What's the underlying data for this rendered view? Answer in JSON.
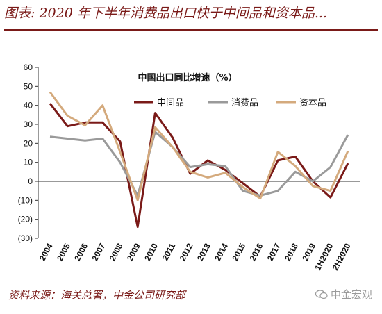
{
  "header": {
    "title": "图表: 2020 年下半年消费品出口快于中间品和资本品..."
  },
  "footer": {
    "source": "资料来源：海关总署，中金公司研究部",
    "watermark": "中金宏观"
  },
  "chart_data": {
    "type": "line",
    "title": "中国出口同比增速（%）",
    "categories": [
      "2004",
      "2005",
      "2006",
      "2007",
      "2008",
      "2009",
      "2010",
      "2011",
      "2012",
      "2013",
      "2014",
      "2015",
      "2016",
      "2017",
      "2018",
      "2019",
      "1H2020",
      "2H2020"
    ],
    "y_tick_labels": [
      "60",
      "50",
      "40",
      "30",
      "20",
      "10",
      "0",
      "(10)",
      "(20)",
      "(30)"
    ],
    "ylim": [
      -30,
      60
    ],
    "y_tick_step": 10,
    "grid": false,
    "legend": "top-right",
    "series": [
      {
        "name": "中间品",
        "color": "#7a1a18",
        "values": [
          41,
          29,
          31,
          31,
          21,
          -24,
          36,
          23,
          4,
          11,
          6,
          -1,
          -8,
          11,
          13,
          0,
          -8.5,
          9.5
        ]
      },
      {
        "name": "消费品",
        "color": "#9a9a9a",
        "values": [
          23.5,
          22.5,
          21.5,
          22.5,
          10,
          -7.5,
          26,
          18,
          7.5,
          9,
          8,
          -5,
          -7.5,
          -5,
          5,
          0,
          7.5,
          24.5
        ]
      },
      {
        "name": "资本品",
        "color": "#d4aa7d",
        "values": [
          47,
          34.5,
          29.5,
          40,
          15.5,
          -10,
          28.5,
          18,
          5,
          2,
          4.5,
          -3,
          -9,
          15.5,
          8,
          -2.5,
          -5,
          16
        ]
      }
    ]
  }
}
